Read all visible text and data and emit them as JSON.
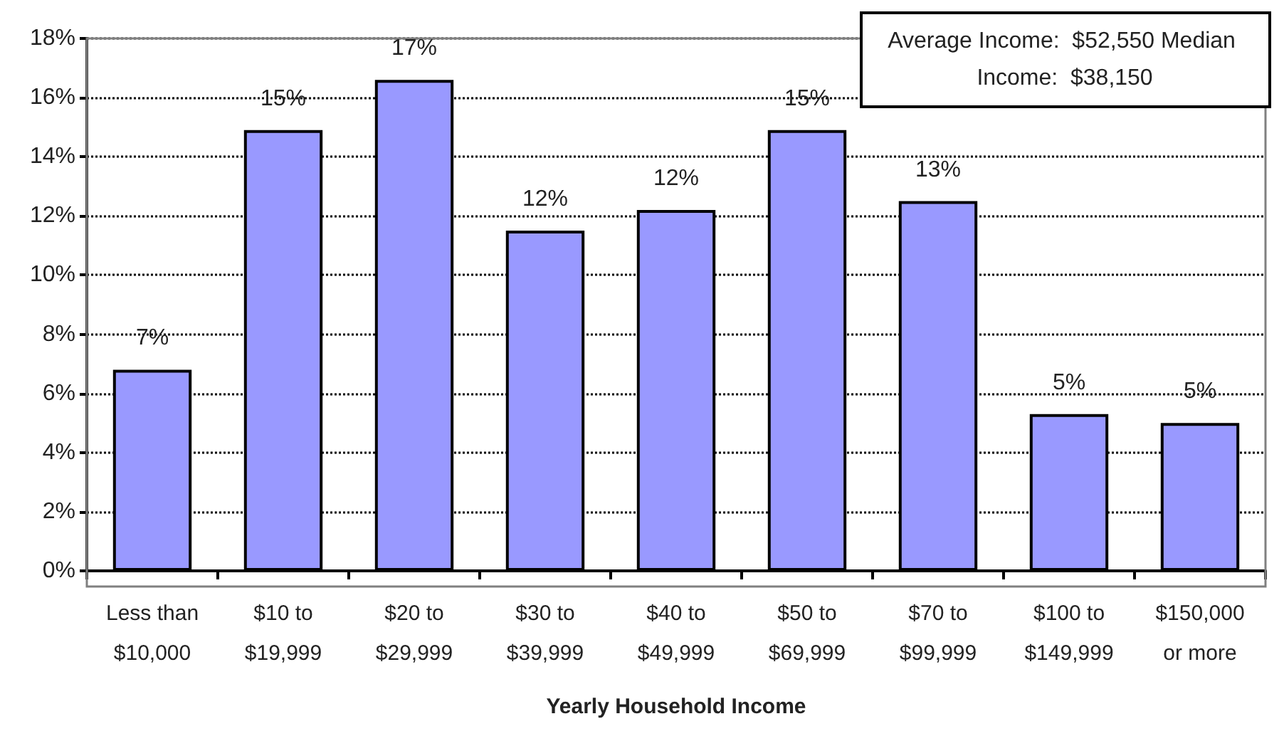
{
  "chart_data": {
    "type": "bar",
    "xlabel": "Yearly Household Income",
    "categories": [
      "Less than\n$10,000",
      "$10 to\n$19,999",
      "$20 to\n$29,999",
      "$30 to\n$39,999",
      "$40 to\n$49,999",
      "$50 to\n$69,999",
      "$70 to\n$99,999",
      "$100 to\n$149,999",
      "$150,000\nor more"
    ],
    "values": [
      6.8,
      14.9,
      16.6,
      11.5,
      12.2,
      14.9,
      12.5,
      5.3,
      5.0
    ],
    "value_labels": [
      "7%",
      "15%",
      "17%",
      "12%",
      "12%",
      "15%",
      "13%",
      "5%",
      "5%"
    ],
    "color": "#9999ff",
    "ylim": [
      0,
      18
    ],
    "yticks": [
      {
        "value": 0,
        "label": "0%"
      },
      {
        "value": 2,
        "label": "2%"
      },
      {
        "value": 4,
        "label": "4%"
      },
      {
        "value": 6,
        "label": "6%"
      },
      {
        "value": 8,
        "label": "8%"
      },
      {
        "value": 10,
        "label": "10%"
      },
      {
        "value": 12,
        "label": "12%"
      },
      {
        "value": 14,
        "label": "14%"
      },
      {
        "value": 16,
        "label": "16%"
      },
      {
        "value": 18,
        "label": "18%"
      }
    ],
    "grid": "y",
    "annotations": [
      "Average Income:  $52,550 Median Income:  $38,150"
    ]
  }
}
